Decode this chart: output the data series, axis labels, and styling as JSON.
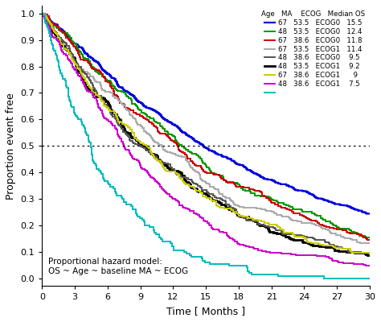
{
  "xlabel": "Time [ Months ]",
  "ylabel": "Proportion event free",
  "xlim": [
    0,
    30
  ],
  "ylim": [
    -0.03,
    1.03
  ],
  "xticks": [
    0,
    3,
    6,
    9,
    12,
    15,
    18,
    21,
    24,
    27,
    30
  ],
  "yticks": [
    0.0,
    0.1,
    0.2,
    0.3,
    0.4,
    0.5,
    0.6,
    0.7,
    0.8,
    0.9,
    1.0
  ],
  "ytick_labels": [
    "0.0",
    "0.1",
    "0.2",
    "0.3",
    "0.4",
    "0.5",
    "0.6",
    "0.7",
    "0.8",
    "0.9",
    "1.0"
  ],
  "dotted_line_y": 0.5,
  "annotation": "Proportional hazard model:\nOS ~ Age ~ baseline MA ~ ECOG",
  "background_color": "#FFFFFF",
  "curves": [
    {
      "color": "#0000DD",
      "median": 15.5,
      "lw": 1.6,
      "shape": 1.08,
      "n": 800
    },
    {
      "color": "#009900",
      "median": 12.4,
      "lw": 1.4,
      "shape": 1.08,
      "n": 300
    },
    {
      "color": "#CC0000",
      "median": 11.8,
      "lw": 1.4,
      "shape": 1.08,
      "n": 300
    },
    {
      "color": "#AAAAAA",
      "median": 11.4,
      "lw": 1.4,
      "shape": 1.08,
      "n": 300
    },
    {
      "color": "#000000",
      "median": 9.2,
      "lw": 2.0,
      "shape": 1.08,
      "n": 300
    },
    {
      "color": "#555555",
      "median": 9.5,
      "lw": 1.4,
      "shape": 1.08,
      "n": 300
    },
    {
      "color": "#CCCC00",
      "median": 9.0,
      "lw": 1.4,
      "shape": 1.08,
      "n": 300
    },
    {
      "color": "#CC00CC",
      "median": 7.5,
      "lw": 1.4,
      "shape": 1.08,
      "n": 300
    },
    {
      "color": "#00BBBB",
      "median": 4.5,
      "lw": 1.4,
      "shape": 1.08,
      "n": 150
    }
  ],
  "legend_lines": [
    {
      "color": "#0000DD",
      "lw": 1.6
    },
    {
      "color": "#009900",
      "lw": 1.4
    },
    {
      "color": "#CC0000",
      "lw": 1.4
    },
    {
      "color": "#AAAAAA",
      "lw": 1.4
    },
    {
      "color": "#555555",
      "lw": 1.4
    },
    {
      "color": "#000000",
      "lw": 2.0
    },
    {
      "color": "#CCCC00",
      "lw": 1.4
    },
    {
      "color": "#CC00CC",
      "lw": 1.4
    },
    {
      "color": "#00BBBB",
      "lw": 1.4
    }
  ],
  "legend_labels": [
    "67   53.5   ECOG0   15.5",
    "48   53.5   ECOG0   12.4",
    "67   38.6   ECOG0   11.8",
    "67   53.5   ECOG1   11.4",
    "48   38.6   ECOG0    9.5",
    "48   53.5   ECOG1    9.2",
    "67   38.6   ECOG1      9",
    "48   38.6   ECOG1    7.5",
    ""
  ],
  "legend_title": "Age   MA    ECOG   Median OS"
}
